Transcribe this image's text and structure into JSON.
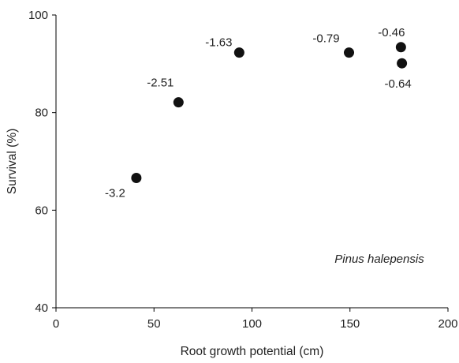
{
  "chart_data": {
    "type": "scatter",
    "xlabel": "Root growth potential (cm)",
    "ylabel": "Survival (%)",
    "xlim": [
      0,
      200
    ],
    "ylim": [
      40,
      100
    ],
    "xticks": [
      0,
      50,
      100,
      150,
      200
    ],
    "yticks": [
      40,
      60,
      80,
      100
    ],
    "grid": false,
    "marker_color": "#111111",
    "annotation": "Pinus halepensis",
    "points": [
      {
        "x": 41,
        "y": 66.6,
        "label": "-3.2"
      },
      {
        "x": 62.5,
        "y": 82.1,
        "label": "-2.51"
      },
      {
        "x": 93.5,
        "y": 92.3,
        "label": "-1.63"
      },
      {
        "x": 149.5,
        "y": 92.3,
        "label": "-0.79"
      },
      {
        "x": 176,
        "y": 93.4,
        "label": "-0.46"
      },
      {
        "x": 176.5,
        "y": 90.1,
        "label": "-0.64"
      }
    ]
  }
}
